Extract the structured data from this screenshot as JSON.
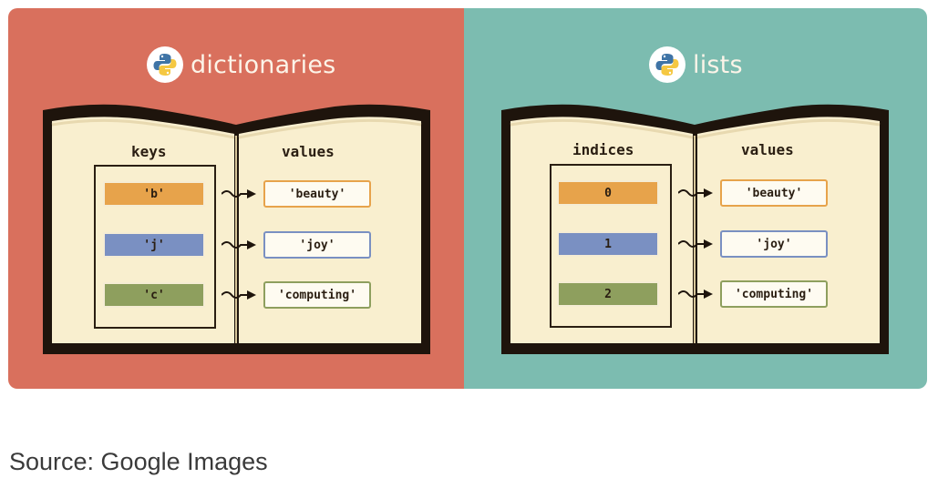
{
  "colors": {
    "left_panel": "#d9705d",
    "right_panel": "#7cbcb0",
    "page": "#f9efcf",
    "ink": "#2a1e12",
    "orange": "#e7a34b",
    "blue": "#7a90c2",
    "green": "#8e9f5e"
  },
  "dictionaries": {
    "title": "dictionaries",
    "logo_icon": "python-logo-icon",
    "keys_header": "keys",
    "values_header": "values",
    "rows": [
      {
        "key": "'b'",
        "value": "'beauty'",
        "color": "orange"
      },
      {
        "key": "'j'",
        "value": "'joy'",
        "color": "blue"
      },
      {
        "key": "'c'",
        "value": "'computing'",
        "color": "green"
      }
    ]
  },
  "lists": {
    "title": "lists",
    "logo_icon": "python-logo-icon",
    "keys_header": "indices",
    "values_header": "values",
    "rows": [
      {
        "key": "0",
        "value": "'beauty'",
        "color": "orange"
      },
      {
        "key": "1",
        "value": "'joy'",
        "color": "blue"
      },
      {
        "key": "2",
        "value": "'computing'",
        "color": "green"
      }
    ]
  },
  "source": "Source: Google Images"
}
